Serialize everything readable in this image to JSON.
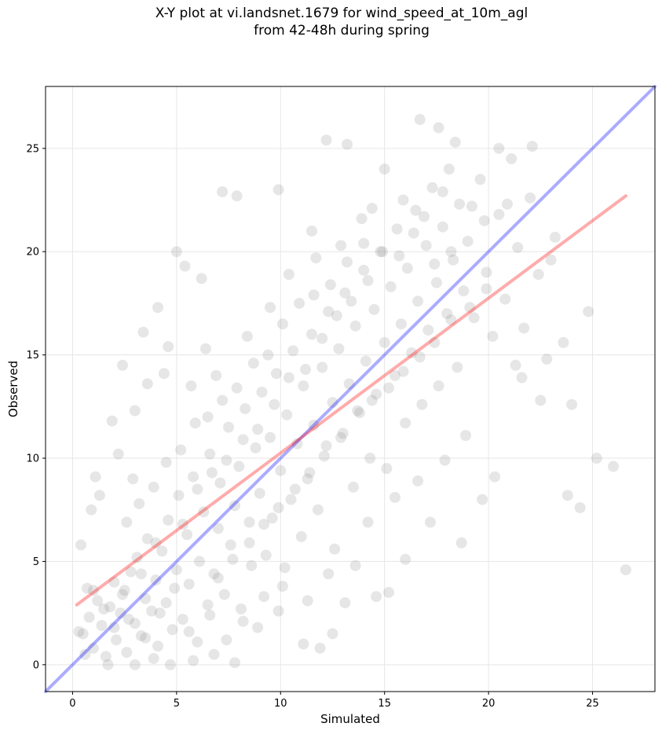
{
  "chart_data": {
    "type": "scatter",
    "title": "X-Y plot at vi.landsnet.1679 for wind_speed_at_10m_agl\nfrom 42-48h during spring",
    "xlabel": "Simulated",
    "ylabel": "Observed",
    "xlim": [
      -1.3,
      28.0
    ],
    "ylim": [
      -1.3,
      28.0
    ],
    "xticks": [
      0,
      5,
      10,
      15,
      20,
      25
    ],
    "yticks": [
      0,
      5,
      10,
      15,
      20,
      25
    ],
    "grid": true,
    "colors": {
      "points": "#808080",
      "one_to_one": "#0000ff",
      "fit": "#ff0000",
      "grid": "#e6e6e6"
    },
    "series": [
      {
        "kind": "scatter",
        "points": [
          [
            0.5,
            1.5
          ],
          [
            0.8,
            2.3
          ],
          [
            1.0,
            0.8
          ],
          [
            1.2,
            3.1
          ],
          [
            1.4,
            1.9
          ],
          [
            1.6,
            0.4
          ],
          [
            1.8,
            2.8
          ],
          [
            2.0,
            4.0
          ],
          [
            2.1,
            1.2
          ],
          [
            2.3,
            2.5
          ],
          [
            2.5,
            3.6
          ],
          [
            2.6,
            0.6
          ],
          [
            2.8,
            4.5
          ],
          [
            3.0,
            2.0
          ],
          [
            3.1,
            5.2
          ],
          [
            3.3,
            1.4
          ],
          [
            3.5,
            3.2
          ],
          [
            3.6,
            6.1
          ],
          [
            3.8,
            2.6
          ],
          [
            4.0,
            4.1
          ],
          [
            4.1,
            0.9
          ],
          [
            4.3,
            5.5
          ],
          [
            4.5,
            3.0
          ],
          [
            4.6,
            7.0
          ],
          [
            4.8,
            1.7
          ],
          [
            5.0,
            4.6
          ],
          [
            5.1,
            8.2
          ],
          [
            5.3,
            2.2
          ],
          [
            5.5,
            6.3
          ],
          [
            5.6,
            3.9
          ],
          [
            5.8,
            9.1
          ],
          [
            6.0,
            1.1
          ],
          [
            6.1,
            5.0
          ],
          [
            6.3,
            7.4
          ],
          [
            6.5,
            2.9
          ],
          [
            6.6,
            10.2
          ],
          [
            6.8,
            4.4
          ],
          [
            7.0,
            6.6
          ],
          [
            7.1,
            8.8
          ],
          [
            7.3,
            3.4
          ],
          [
            7.5,
            11.5
          ],
          [
            7.6,
            5.8
          ],
          [
            7.8,
            7.7
          ],
          [
            8.0,
            9.6
          ],
          [
            8.1,
            2.7
          ],
          [
            8.3,
            12.4
          ],
          [
            8.5,
            6.9
          ],
          [
            8.6,
            4.8
          ],
          [
            8.8,
            10.5
          ],
          [
            9.0,
            8.3
          ],
          [
            9.1,
            13.2
          ],
          [
            9.3,
            5.3
          ],
          [
            9.5,
            11.0
          ],
          [
            9.6,
            7.1
          ],
          [
            9.8,
            14.1
          ],
          [
            10.0,
            9.4
          ],
          [
            10.1,
            3.8
          ],
          [
            10.3,
            12.1
          ],
          [
            10.5,
            8.0
          ],
          [
            10.6,
            15.2
          ],
          [
            10.8,
            10.7
          ],
          [
            11.0,
            6.2
          ],
          [
            11.1,
            13.5
          ],
          [
            11.3,
            9.0
          ],
          [
            11.5,
            16.0
          ],
          [
            11.6,
            11.6
          ],
          [
            11.8,
            7.5
          ],
          [
            12.0,
            14.4
          ],
          [
            12.1,
            10.1
          ],
          [
            12.3,
            17.1
          ],
          [
            12.5,
            12.7
          ],
          [
            12.6,
            5.6
          ],
          [
            12.8,
            15.3
          ],
          [
            13.0,
            11.2
          ],
          [
            13.1,
            18.0
          ],
          [
            13.3,
            13.6
          ],
          [
            13.5,
            8.6
          ],
          [
            13.6,
            16.4
          ],
          [
            13.8,
            12.2
          ],
          [
            14.0,
            19.1
          ],
          [
            14.1,
            14.7
          ],
          [
            14.3,
            10.0
          ],
          [
            14.5,
            17.2
          ],
          [
            14.6,
            13.1
          ],
          [
            14.8,
            20.0
          ],
          [
            15.0,
            15.6
          ],
          [
            15.1,
            9.5
          ],
          [
            15.3,
            18.3
          ],
          [
            15.5,
            14.0
          ],
          [
            15.6,
            21.1
          ],
          [
            15.8,
            16.5
          ],
          [
            16.0,
            11.7
          ],
          [
            16.1,
            19.2
          ],
          [
            16.3,
            15.1
          ],
          [
            16.5,
            22.0
          ],
          [
            16.6,
            17.6
          ],
          [
            16.8,
            12.6
          ],
          [
            17.0,
            20.3
          ],
          [
            17.1,
            16.2
          ],
          [
            17.3,
            23.1
          ],
          [
            17.5,
            18.5
          ],
          [
            17.6,
            13.5
          ],
          [
            17.8,
            21.2
          ],
          [
            18.0,
            17.0
          ],
          [
            18.1,
            24.0
          ],
          [
            18.3,
            19.6
          ],
          [
            18.5,
            14.4
          ],
          [
            18.6,
            22.3
          ],
          [
            18.8,
            18.1
          ],
          [
            19.0,
            20.5
          ],
          [
            19.3,
            16.8
          ],
          [
            19.6,
            23.5
          ],
          [
            19.9,
            19.0
          ],
          [
            20.2,
            15.9
          ],
          [
            20.5,
            21.8
          ],
          [
            20.8,
            17.7
          ],
          [
            21.1,
            24.5
          ],
          [
            21.4,
            20.2
          ],
          [
            21.7,
            16.3
          ],
          [
            22.0,
            22.6
          ],
          [
            22.4,
            18.9
          ],
          [
            22.8,
            14.8
          ],
          [
            23.2,
            20.7
          ],
          [
            23.6,
            15.6
          ],
          [
            24.0,
            12.6
          ],
          [
            24.4,
            7.6
          ],
          [
            24.8,
            17.1
          ],
          [
            25.2,
            10.0
          ],
          [
            26.0,
            9.6
          ],
          [
            26.6,
            4.6
          ],
          [
            1.1,
            9.1
          ],
          [
            1.9,
            11.8
          ],
          [
            2.4,
            14.5
          ],
          [
            3.0,
            12.3
          ],
          [
            3.4,
            16.1
          ],
          [
            4.1,
            17.3
          ],
          [
            4.6,
            15.4
          ],
          [
            5.0,
            20.0
          ],
          [
            5.4,
            19.3
          ],
          [
            6.2,
            18.7
          ],
          [
            7.2,
            22.9
          ],
          [
            7.9,
            22.7
          ],
          [
            9.9,
            23.0
          ],
          [
            11.5,
            21.0
          ],
          [
            12.2,
            25.4
          ],
          [
            13.2,
            25.2
          ],
          [
            15.0,
            24.0
          ],
          [
            16.7,
            26.4
          ],
          [
            17.6,
            26.0
          ],
          [
            18.4,
            25.3
          ],
          [
            20.5,
            25.0
          ],
          [
            22.1,
            25.1
          ],
          [
            23.0,
            19.6
          ],
          [
            23.8,
            8.2
          ],
          [
            21.3,
            14.5
          ],
          [
            22.5,
            12.8
          ],
          [
            21.6,
            13.9
          ],
          [
            20.3,
            9.1
          ],
          [
            19.7,
            8.0
          ],
          [
            18.7,
            5.9
          ],
          [
            17.2,
            6.9
          ],
          [
            16.0,
            5.1
          ],
          [
            15.2,
            3.5
          ],
          [
            14.6,
            3.3
          ],
          [
            13.1,
            3.0
          ],
          [
            12.5,
            1.5
          ],
          [
            11.9,
            0.8
          ],
          [
            11.1,
            1.0
          ],
          [
            9.9,
            2.6
          ],
          [
            8.9,
            1.8
          ],
          [
            7.8,
            0.1
          ],
          [
            6.8,
            0.5
          ],
          [
            5.8,
            0.2
          ],
          [
            4.7,
            0.0
          ],
          [
            3.9,
            0.3
          ],
          [
            3.0,
            0.0
          ],
          [
            1.7,
            0.0
          ],
          [
            0.6,
            0.5
          ],
          [
            0.3,
            1.6
          ],
          [
            0.4,
            5.8
          ],
          [
            0.7,
            3.7
          ],
          [
            0.9,
            7.5
          ],
          [
            1.3,
            8.2
          ],
          [
            2.2,
            10.2
          ],
          [
            2.9,
            9.0
          ],
          [
            3.6,
            13.6
          ],
          [
            4.4,
            14.1
          ],
          [
            5.7,
            13.5
          ],
          [
            6.4,
            15.3
          ],
          [
            6.9,
            14.0
          ],
          [
            8.4,
            15.9
          ],
          [
            9.5,
            17.3
          ],
          [
            10.4,
            18.9
          ],
          [
            11.7,
            19.7
          ],
          [
            12.9,
            20.3
          ],
          [
            13.9,
            21.6
          ],
          [
            14.4,
            22.1
          ],
          [
            15.9,
            22.5
          ],
          [
            16.9,
            21.7
          ],
          [
            17.8,
            22.9
          ],
          [
            19.2,
            22.2
          ],
          [
            19.8,
            21.5
          ],
          [
            20.9,
            22.3
          ],
          [
            18.9,
            11.1
          ],
          [
            17.9,
            9.9
          ],
          [
            16.6,
            8.9
          ],
          [
            15.5,
            8.1
          ],
          [
            14.2,
            6.9
          ],
          [
            13.6,
            4.8
          ],
          [
            12.3,
            4.4
          ],
          [
            11.3,
            3.1
          ],
          [
            10.2,
            4.7
          ],
          [
            9.2,
            3.3
          ],
          [
            8.2,
            2.1
          ],
          [
            7.4,
            1.2
          ],
          [
            6.6,
            2.4
          ],
          [
            5.6,
            1.6
          ],
          [
            4.9,
            3.7
          ],
          [
            4.2,
            2.5
          ],
          [
            3.5,
            1.3
          ],
          [
            2.7,
            2.2
          ],
          [
            2.0,
            1.8
          ],
          [
            1.5,
            2.7
          ],
          [
            1.0,
            3.6
          ],
          [
            2.6,
            6.9
          ],
          [
            3.2,
            7.8
          ],
          [
            3.9,
            8.6
          ],
          [
            4.5,
            9.8
          ],
          [
            5.2,
            10.4
          ],
          [
            5.9,
            11.7
          ],
          [
            6.5,
            12.0
          ],
          [
            7.2,
            12.8
          ],
          [
            7.9,
            13.4
          ],
          [
            8.7,
            14.6
          ],
          [
            9.4,
            15.0
          ],
          [
            10.1,
            16.5
          ],
          [
            10.9,
            17.5
          ],
          [
            11.6,
            17.9
          ],
          [
            12.4,
            18.4
          ],
          [
            13.2,
            19.5
          ],
          [
            14.0,
            20.4
          ],
          [
            14.9,
            20.0
          ],
          [
            15.7,
            19.8
          ],
          [
            16.4,
            20.9
          ],
          [
            17.4,
            19.4
          ],
          [
            18.2,
            20.0
          ],
          [
            6.0,
            8.5
          ],
          [
            6.7,
            9.3
          ],
          [
            7.4,
            9.9
          ],
          [
            8.2,
            10.9
          ],
          [
            8.9,
            11.4
          ],
          [
            9.7,
            12.6
          ],
          [
            10.4,
            13.9
          ],
          [
            11.2,
            14.3
          ],
          [
            12.0,
            15.8
          ],
          [
            12.7,
            16.9
          ],
          [
            13.4,
            17.6
          ],
          [
            14.2,
            18.6
          ],
          [
            7.0,
            4.2
          ],
          [
            7.7,
            5.1
          ],
          [
            8.5,
            5.9
          ],
          [
            9.2,
            6.8
          ],
          [
            9.9,
            7.6
          ],
          [
            10.7,
            8.5
          ],
          [
            11.4,
            9.3
          ],
          [
            12.2,
            10.6
          ],
          [
            12.9,
            11.0
          ],
          [
            13.7,
            12.3
          ],
          [
            14.4,
            12.8
          ],
          [
            15.2,
            13.4
          ],
          [
            15.9,
            14.2
          ],
          [
            16.7,
            14.9
          ],
          [
            17.4,
            15.6
          ],
          [
            18.2,
            16.7
          ],
          [
            19.1,
            17.3
          ],
          [
            19.9,
            18.2
          ],
          [
            5.3,
            6.8
          ],
          [
            4.0,
            5.9
          ],
          [
            3.3,
            4.4
          ],
          [
            2.4,
            3.4
          ]
        ]
      },
      {
        "kind": "line",
        "role": "one_to_one",
        "points": [
          [
            -1.3,
            -1.3
          ],
          [
            28.0,
            28.0
          ]
        ]
      },
      {
        "kind": "line",
        "role": "fit",
        "points": [
          [
            0.2,
            2.9
          ],
          [
            26.6,
            22.7
          ]
        ]
      }
    ]
  }
}
